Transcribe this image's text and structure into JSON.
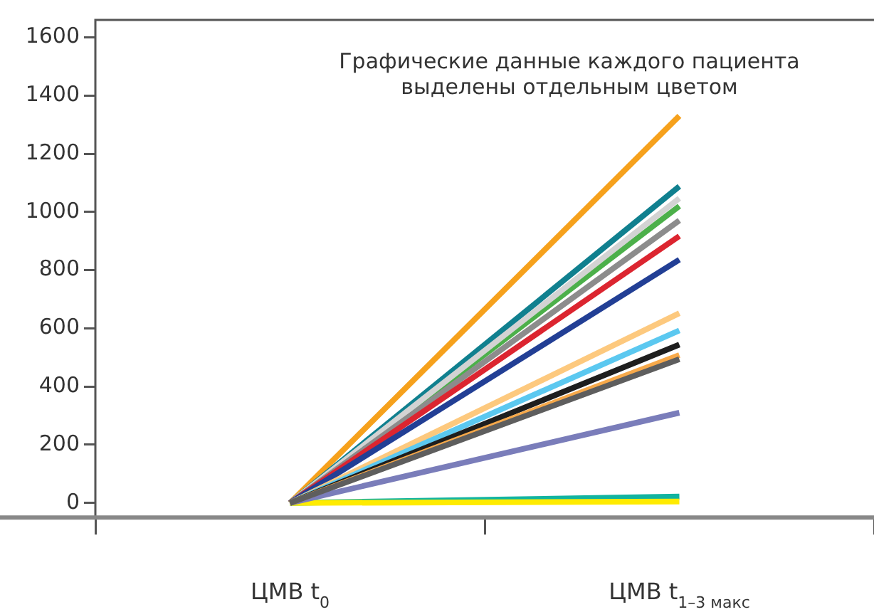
{
  "chart_data": {
    "type": "line",
    "categories": [
      "ЦМВ t$_{0}$",
      "ЦМВ t$_{1–3 макс}$"
    ],
    "series": [
      {
        "color": "#5e5e5e",
        "values": [
          0,
          494
        ]
      },
      {
        "color": "#f7a94a",
        "values": [
          0,
          508
        ]
      },
      {
        "color": "#1e1e1e",
        "values": [
          0,
          544
        ]
      },
      {
        "color": "#5bc8f0",
        "values": [
          0,
          593
        ]
      },
      {
        "color": "#fdc97e",
        "values": [
          0,
          652
        ]
      },
      {
        "color": "#7a7dba",
        "values": [
          0,
          310
        ]
      },
      {
        "color": "#223f95",
        "values": [
          0,
          836
        ]
      },
      {
        "color": "#dc2530",
        "values": [
          0,
          917
        ]
      },
      {
        "color": "#8c8c8c",
        "values": [
          0,
          971
        ]
      },
      {
        "color": "#d3d3d3",
        "values": [
          0,
          1047
        ]
      },
      {
        "color": "#4cb04a",
        "values": [
          0,
          1020
        ]
      },
      {
        "color": "#10808f",
        "values": [
          0,
          1088
        ]
      },
      {
        "color": "#f6a11c",
        "values": [
          0,
          1330
        ]
      },
      {
        "color": "#ffeb00",
        "values": [
          0,
          5
        ]
      },
      {
        "color": "#12b4a0",
        "values": [
          0,
          22
        ]
      }
    ],
    "ylim": [
      -50,
      1660
    ],
    "yticks": [
      0,
      200,
      400,
      600,
      800,
      1000,
      1200,
      1400,
      1600
    ],
    "grid": false,
    "legend": false,
    "marker": "none",
    "line_style": "solid",
    "annotations": [
      "Графические данные каждого пациента выделены отдельным цветом"
    ]
  }
}
